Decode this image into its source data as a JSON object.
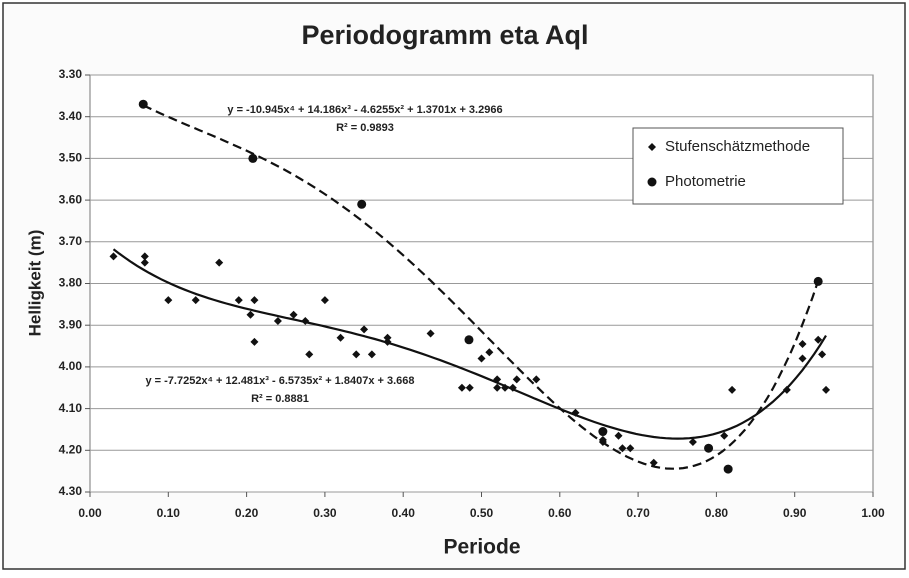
{
  "chart_data": {
    "type": "scatter",
    "title": "Periodogramm eta Aql",
    "xlabel": "Periode",
    "ylabel": "Helligkeit (m)",
    "xlim": [
      0,
      1
    ],
    "ylim": [
      3.3,
      4.3
    ],
    "y_inverted": true,
    "grid": true,
    "legend": "upper right",
    "xticks": [
      {
        "value": 0,
        "label": "0.00"
      },
      {
        "value": 0.1,
        "label": "0.10"
      },
      {
        "value": 0.2,
        "label": "0.20"
      },
      {
        "value": 0.3,
        "label": "0.30"
      },
      {
        "value": 0.4,
        "label": "0.40"
      },
      {
        "value": 0.5,
        "label": "0.50"
      },
      {
        "value": 0.6,
        "label": "0.60"
      },
      {
        "value": 0.7,
        "label": "0.70"
      },
      {
        "value": 0.8,
        "label": "0.80"
      },
      {
        "value": 0.9,
        "label": "0.90"
      },
      {
        "value": 1,
        "label": "1.00"
      }
    ],
    "yticks": [
      {
        "value": 3.3,
        "label": "3.30"
      },
      {
        "value": 3.4,
        "label": "3.40"
      },
      {
        "value": 3.5,
        "label": "3.50"
      },
      {
        "value": 3.6,
        "label": "3.60"
      },
      {
        "value": 3.7,
        "label": "3.70"
      },
      {
        "value": 3.8,
        "label": "3.80"
      },
      {
        "value": 3.9,
        "label": "3.90"
      },
      {
        "value": 4.0,
        "label": "4.00"
      },
      {
        "value": 4.1,
        "label": "4.10"
      },
      {
        "value": 4.2,
        "label": "4.20"
      },
      {
        "value": 4.3,
        "label": "4.30"
      }
    ],
    "series": [
      {
        "name": "Stufenschätzmethode",
        "marker": "diamond",
        "color": "#111111",
        "x": [
          0.03,
          0.07,
          0.07,
          0.1,
          0.135,
          0.165,
          0.19,
          0.205,
          0.21,
          0.21,
          0.24,
          0.26,
          0.275,
          0.28,
          0.3,
          0.32,
          0.34,
          0.35,
          0.36,
          0.38,
          0.38,
          0.435,
          0.475,
          0.485,
          0.5,
          0.51,
          0.52,
          0.52,
          0.53,
          0.54,
          0.545,
          0.57,
          0.62,
          0.655,
          0.655,
          0.675,
          0.68,
          0.69,
          0.72,
          0.77,
          0.81,
          0.82,
          0.89,
          0.91,
          0.91,
          0.93,
          0.935,
          0.94
        ],
        "values": [
          3.735,
          3.735,
          3.75,
          3.84,
          3.84,
          3.75,
          3.84,
          3.875,
          3.84,
          3.94,
          3.89,
          3.875,
          3.89,
          3.97,
          3.84,
          3.93,
          3.97,
          3.91,
          3.97,
          3.94,
          3.93,
          3.92,
          4.05,
          4.05,
          3.98,
          3.965,
          4.03,
          4.05,
          4.05,
          4.05,
          4.03,
          4.03,
          4.11,
          4.18,
          4.175,
          4.165,
          4.195,
          4.195,
          4.23,
          4.18,
          4.165,
          4.055,
          4.055,
          3.945,
          3.98,
          3.935,
          3.97,
          4.055
        ]
      },
      {
        "name": "Photometrie",
        "marker": "circle",
        "color": "#111111",
        "x": [
          0.068,
          0.208,
          0.347,
          0.484,
          0.655,
          0.79,
          0.815,
          0.93
        ],
        "values": [
          3.37,
          3.5,
          3.61,
          3.935,
          4.155,
          4.195,
          4.245,
          3.795
        ]
      }
    ],
    "trendlines": [
      {
        "equation": "y = -10.945x⁴ + 14.186x³ - 4.6255x² + 1.3701x + 3.2966",
        "r2": "R² = 0.9893",
        "coefficients": [
          -10.945,
          14.186,
          -4.6255,
          1.3701,
          3.2966
        ],
        "range": [
          0.068,
          0.93
        ],
        "dashed": true
      },
      {
        "equation": "y = -7.7252x⁴ + 12.481x³ - 6.5735x² + 1.8407x + 3.668",
        "r2": "R² = 0.8881",
        "coefficients": [
          -7.7252,
          12.481,
          -6.5735,
          1.8407,
          3.668
        ],
        "range": [
          0.03,
          0.94
        ],
        "dashed": false
      }
    ]
  }
}
